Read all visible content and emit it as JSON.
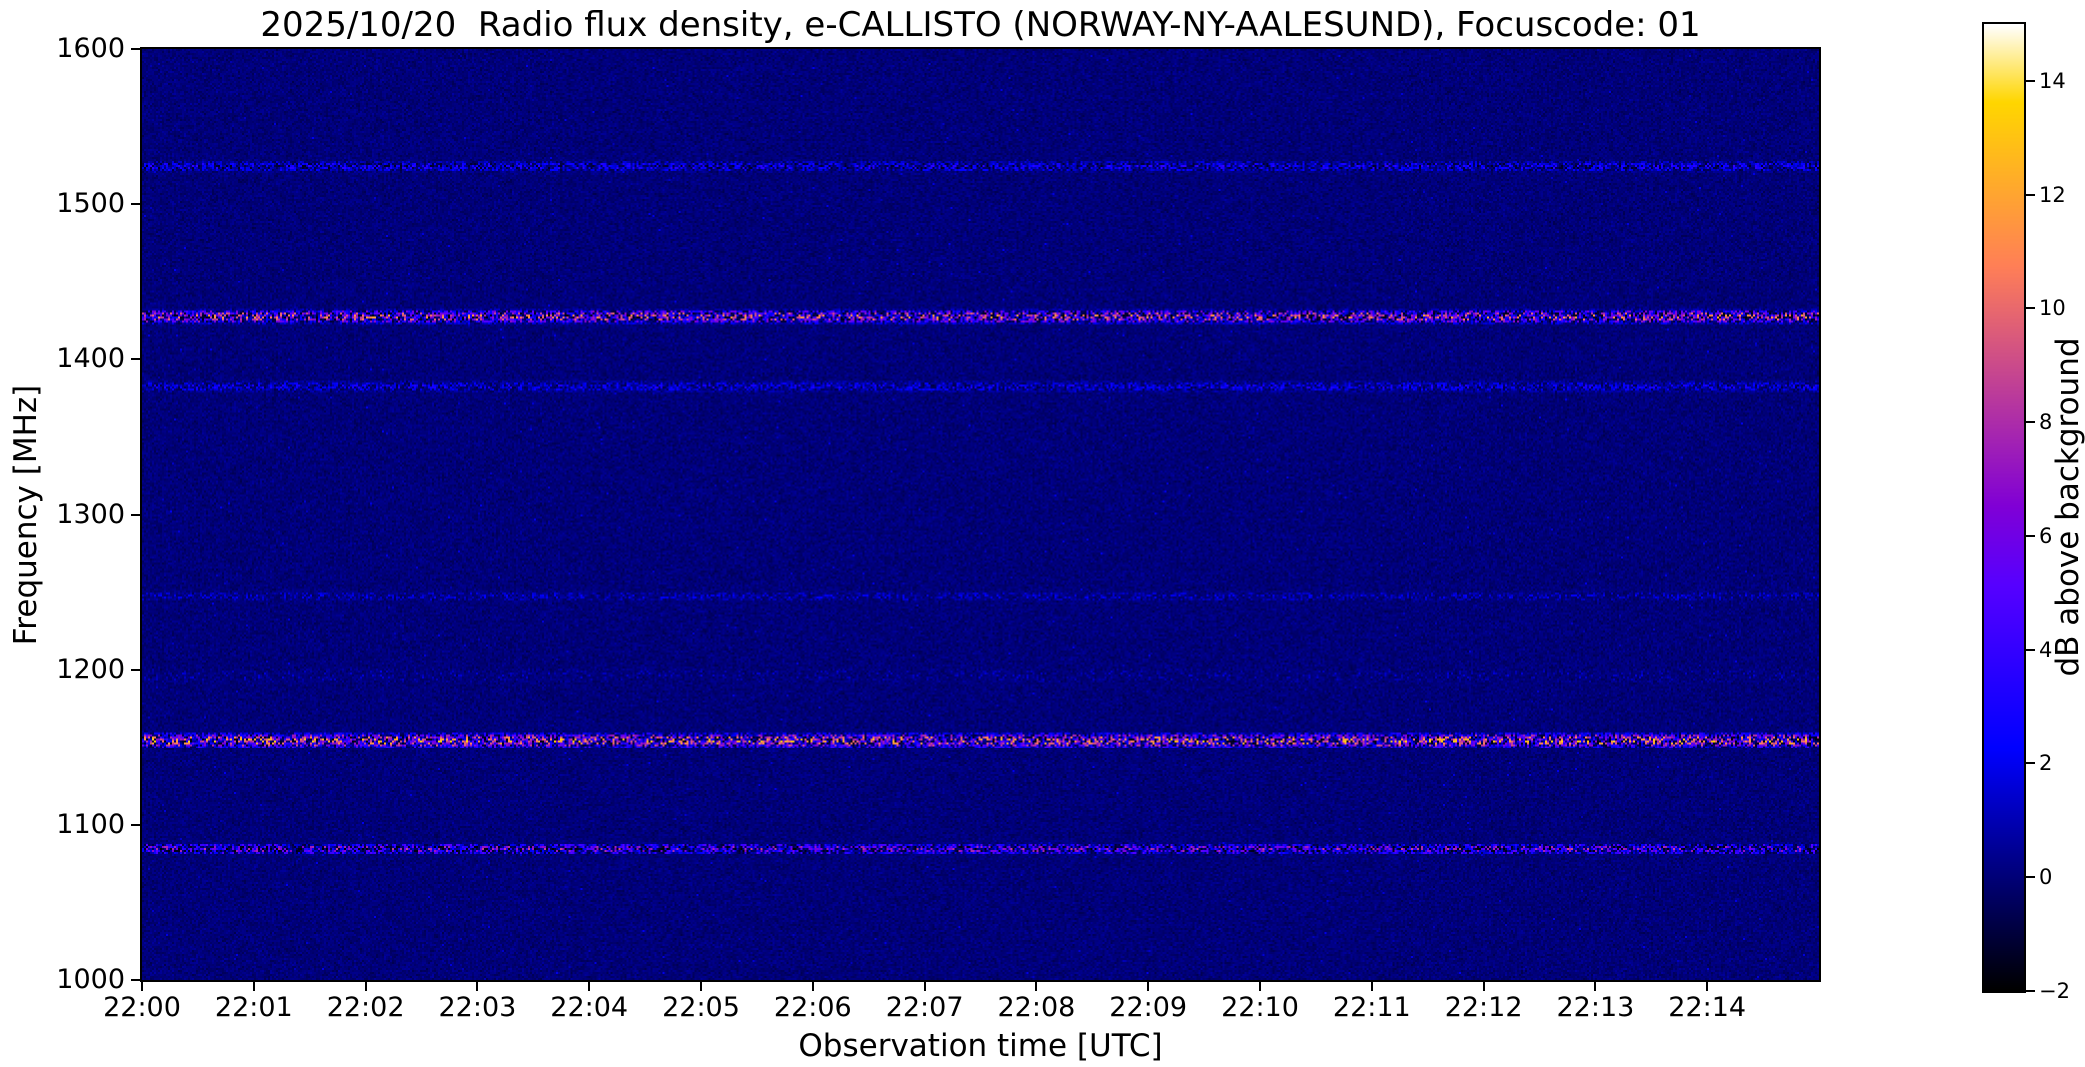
{
  "chart_data": {
    "type": "heatmap",
    "title": "2025/10/20  Radio flux density, e-CALLISTO (NORWAY-NY-AALESUND), Focuscode: 01",
    "date": "2025/10/20",
    "instrument": "e-CALLISTO",
    "station": "NORWAY-NY-AALESUND",
    "focuscode": "01",
    "xlabel": "Observation time [UTC]",
    "ylabel": "Frequency [MHz]",
    "xlim_minutes": [
      0,
      15
    ],
    "ylim": [
      1000,
      1600
    ],
    "x_ticks": [
      {
        "minute": 0,
        "label": "22:00"
      },
      {
        "minute": 1,
        "label": "22:01"
      },
      {
        "minute": 2,
        "label": "22:02"
      },
      {
        "minute": 3,
        "label": "22:03"
      },
      {
        "minute": 4,
        "label": "22:04"
      },
      {
        "minute": 5,
        "label": "22:05"
      },
      {
        "minute": 6,
        "label": "22:06"
      },
      {
        "minute": 7,
        "label": "22:07"
      },
      {
        "minute": 8,
        "label": "22:08"
      },
      {
        "minute": 9,
        "label": "22:09"
      },
      {
        "minute": 10,
        "label": "22:10"
      },
      {
        "minute": 11,
        "label": "22:11"
      },
      {
        "minute": 12,
        "label": "22:12"
      },
      {
        "minute": 13,
        "label": "22:13"
      },
      {
        "minute": 14,
        "label": "22:14"
      }
    ],
    "y_ticks": [
      {
        "v": 1000,
        "label": "1000"
      },
      {
        "v": 1100,
        "label": "1100"
      },
      {
        "v": 1200,
        "label": "1200"
      },
      {
        "v": 1300,
        "label": "1300"
      },
      {
        "v": 1400,
        "label": "1400"
      },
      {
        "v": 1500,
        "label": "1500"
      },
      {
        "v": 1600,
        "label": "1600"
      }
    ],
    "value_range_db": [
      -2,
      15
    ],
    "background_level_db": 0,
    "colormap": "gnuplot2",
    "grid": false,
    "colorbar": {
      "label": "dB above background",
      "ticks": [
        {
          "v": -2,
          "label": "−2"
        },
        {
          "v": 0,
          "label": "0"
        },
        {
          "v": 2,
          "label": "2"
        },
        {
          "v": 4,
          "label": "4"
        },
        {
          "v": 6,
          "label": "6"
        },
        {
          "v": 8,
          "label": "8"
        },
        {
          "v": 10,
          "label": "10"
        },
        {
          "v": 12,
          "label": "12"
        },
        {
          "v": 14,
          "label": "14"
        }
      ]
    },
    "interference_bands": [
      {
        "freq_mhz": 1525,
        "width_mhz": 6,
        "min_db": -1.5,
        "max_db": 4,
        "density": 0.9,
        "bias": 1.1,
        "note": "faint blue speckled RFI line"
      },
      {
        "freq_mhz": 1428,
        "width_mhz": 8,
        "min_db": -2,
        "max_db": 12.5,
        "density": 0.95,
        "bias": 1.45,
        "note": "strong RFI band with magenta/white bursts"
      },
      {
        "freq_mhz": 1383,
        "width_mhz": 6,
        "min_db": -1,
        "max_db": 3.5,
        "density": 0.85,
        "bias": 1.1,
        "note": "faint blue RFI line"
      },
      {
        "freq_mhz": 1248,
        "width_mhz": 5,
        "min_db": -0.5,
        "max_db": 2.5,
        "density": 0.55,
        "bias": 1.0,
        "note": "very faint RFI line"
      },
      {
        "freq_mhz": 1197,
        "width_mhz": 9,
        "min_db": 0,
        "max_db": 1.8,
        "density": 0.18,
        "bias": 1.0,
        "note": "sparse faint blue patches"
      },
      {
        "freq_mhz": 1155,
        "width_mhz": 9,
        "min_db": -2,
        "max_db": 14,
        "density": 0.97,
        "bias": 1.35,
        "note": "strongest RFI band with orange/yellow bursts"
      },
      {
        "freq_mhz": 1085,
        "width_mhz": 6,
        "min_db": -2,
        "max_db": 9,
        "density": 0.9,
        "bias": 1.4,
        "note": "moderate RFI band with magenta dots"
      }
    ]
  },
  "figure": {
    "background": "#ffffff",
    "frame_color": "#000000",
    "text_color": "#000000"
  }
}
